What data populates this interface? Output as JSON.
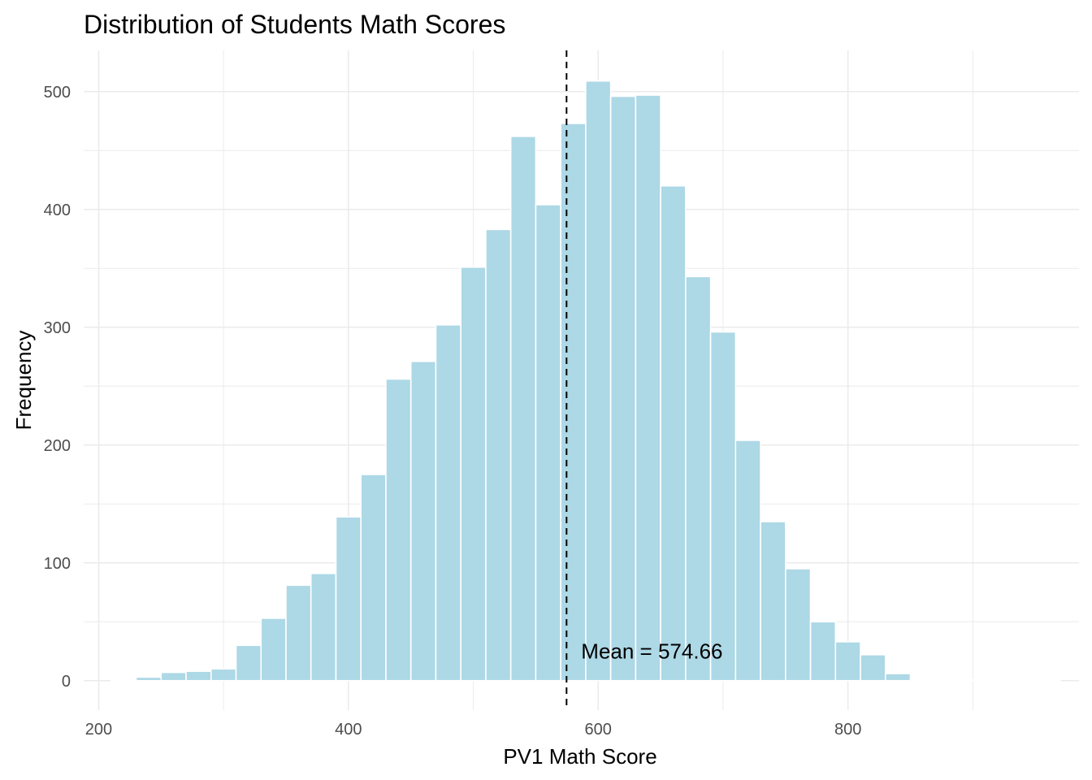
{
  "chart_data": {
    "type": "bar",
    "title": "Distribution of Students Math Scores",
    "xlabel": "PV1 Math Score",
    "ylabel": "Frequency",
    "xlim": [
      188,
      985
    ],
    "ylim": [
      -25,
      535
    ],
    "x_ticks": [
      200,
      400,
      600,
      800
    ],
    "x_tick_labels": [
      "200",
      "400",
      "600",
      "800"
    ],
    "y_ticks": [
      0,
      100,
      200,
      300,
      400,
      500
    ],
    "y_tick_labels": [
      "0",
      "100",
      "200",
      "300",
      "400",
      "500"
    ],
    "bin_width": 20,
    "bins": [
      {
        "x0": 210,
        "x1": 230,
        "count": 0
      },
      {
        "x0": 230,
        "x1": 250,
        "count": 3
      },
      {
        "x0": 250,
        "x1": 270,
        "count": 7
      },
      {
        "x0": 270,
        "x1": 290,
        "count": 8
      },
      {
        "x0": 290,
        "x1": 310,
        "count": 10
      },
      {
        "x0": 310,
        "x1": 330,
        "count": 30
      },
      {
        "x0": 330,
        "x1": 350,
        "count": 53
      },
      {
        "x0": 350,
        "x1": 370,
        "count": 81
      },
      {
        "x0": 370,
        "x1": 390,
        "count": 91
      },
      {
        "x0": 390,
        "x1": 410,
        "count": 139
      },
      {
        "x0": 410,
        "x1": 430,
        "count": 175
      },
      {
        "x0": 430,
        "x1": 450,
        "count": 256
      },
      {
        "x0": 450,
        "x1": 470,
        "count": 271
      },
      {
        "x0": 470,
        "x1": 490,
        "count": 302
      },
      {
        "x0": 490,
        "x1": 510,
        "count": 351
      },
      {
        "x0": 510,
        "x1": 530,
        "count": 383
      },
      {
        "x0": 530,
        "x1": 550,
        "count": 462
      },
      {
        "x0": 550,
        "x1": 570,
        "count": 404
      },
      {
        "x0": 570,
        "x1": 590,
        "count": 473
      },
      {
        "x0": 590,
        "x1": 610,
        "count": 509
      },
      {
        "x0": 610,
        "x1": 630,
        "count": 496
      },
      {
        "x0": 630,
        "x1": 650,
        "count": 497
      },
      {
        "x0": 650,
        "x1": 670,
        "count": 420
      },
      {
        "x0": 670,
        "x1": 690,
        "count": 343
      },
      {
        "x0": 690,
        "x1": 710,
        "count": 296
      },
      {
        "x0": 710,
        "x1": 730,
        "count": 204
      },
      {
        "x0": 730,
        "x1": 750,
        "count": 135
      },
      {
        "x0": 750,
        "x1": 770,
        "count": 95
      },
      {
        "x0": 770,
        "x1": 790,
        "count": 50
      },
      {
        "x0": 790,
        "x1": 810,
        "count": 33
      },
      {
        "x0": 810,
        "x1": 830,
        "count": 22
      },
      {
        "x0": 830,
        "x1": 850,
        "count": 6
      },
      {
        "x0": 850,
        "x1": 870,
        "count": 1
      },
      {
        "x0": 870,
        "x1": 890,
        "count": 0
      },
      {
        "x0": 890,
        "x1": 910,
        "count": 0
      },
      {
        "x0": 910,
        "x1": 930,
        "count": 0
      },
      {
        "x0": 930,
        "x1": 950,
        "count": 0
      },
      {
        "x0": 950,
        "x1": 970,
        "count": 0
      }
    ],
    "mean_line": {
      "value": 574.66,
      "label": "Mean = 574.66",
      "style": "dashed",
      "color": "#000000"
    },
    "bar_fill": "#add8e6",
    "bar_outline": "#ffffff",
    "grid": true,
    "grid_color": "#ebebeb",
    "legend": "none"
  }
}
